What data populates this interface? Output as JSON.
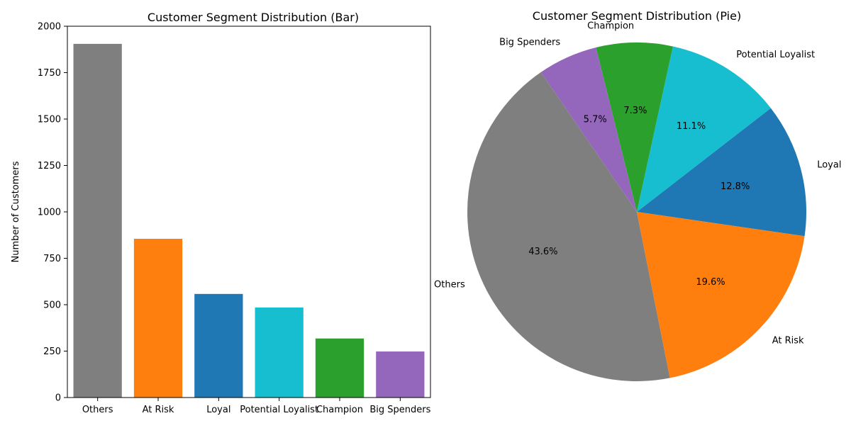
{
  "chart_data": [
    {
      "type": "bar",
      "title": "Customer Segment Distribution (Bar)",
      "xlabel": "",
      "ylabel": "Number of Customers",
      "categories": [
        "Others",
        "At Risk",
        "Loyal",
        "Potential Loyalist",
        "Champion",
        "Big Spenders"
      ],
      "values": [
        1905,
        855,
        558,
        485,
        318,
        248
      ],
      "colors": [
        "#7f7f7f",
        "#ff7f0e",
        "#1f77b4",
        "#17becf",
        "#2ca02c",
        "#9467bd"
      ],
      "ylim": [
        0,
        2000
      ],
      "yticks": [
        0,
        250,
        500,
        750,
        1000,
        1250,
        1500,
        1750,
        2000
      ],
      "grid": false
    },
    {
      "type": "pie",
      "title": "Customer Segment Distribution (Pie)",
      "slices": [
        {
          "label": "Loyal",
          "value": 12.8,
          "pct_label": "12.8%",
          "color": "#1f77b4"
        },
        {
          "label": "Potential Loyalist",
          "value": 11.1,
          "pct_label": "11.1%",
          "color": "#17becf"
        },
        {
          "label": "Champion",
          "value": 7.3,
          "pct_label": "7.3%",
          "color": "#2ca02c"
        },
        {
          "label": "Big Spenders",
          "value": 5.7,
          "pct_label": "5.7%",
          "color": "#9467bd"
        },
        {
          "label": "Others",
          "value": 43.6,
          "pct_label": "43.6%",
          "color": "#7f7f7f"
        },
        {
          "label": "At Risk",
          "value": 19.6,
          "pct_label": "19.6%",
          "color": "#ff7f0e"
        }
      ]
    }
  ]
}
